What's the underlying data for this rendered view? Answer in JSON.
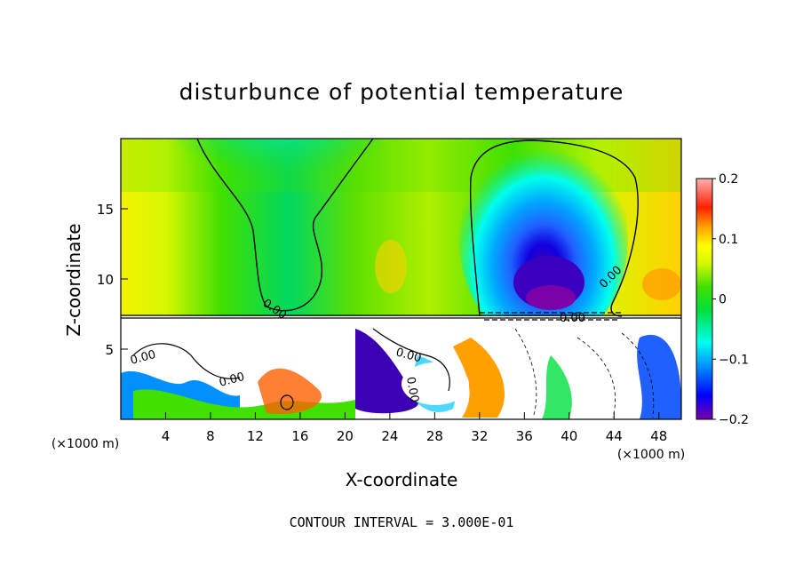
{
  "chart_data": {
    "type": "heatmap",
    "title": "disturbunce of potential temperature",
    "xlabel": "X-coordinate",
    "ylabel": "Z-coordinate",
    "x_unit": "(×1000 m)",
    "xlim": [
      0,
      50
    ],
    "ylim": [
      0,
      20
    ],
    "x_ticks": [
      4,
      8,
      12,
      16,
      20,
      24,
      28,
      32,
      36,
      40,
      44,
      48
    ],
    "y_ticks": [
      5,
      10,
      15
    ],
    "contour_label": "0.00",
    "contour_interval_text": "CONTOUR INTERVAL = 3.000E-01",
    "colorbar": {
      "range": [
        -0.2,
        0.2
      ],
      "tick_labels": [
        "0.2",
        "0.1",
        "0",
        "−0.1",
        "−0.2"
      ],
      "tick_values": [
        0.2,
        0.1,
        0,
        -0.1,
        -0.2
      ],
      "colors": [
        "#7a00a8",
        "#3c00b4",
        "#0000ff",
        "#2060ff",
        "#0090ff",
        "#00c8ff",
        "#00ffee",
        "#00f0a0",
        "#00e040",
        "#40e000",
        "#a0f000",
        "#d8f800",
        "#ffff00",
        "#ffd000",
        "#ffa000",
        "#ff6000",
        "#ff2000",
        "#ff0000",
        "#ff6080",
        "#ffb0b0"
      ]
    }
  }
}
